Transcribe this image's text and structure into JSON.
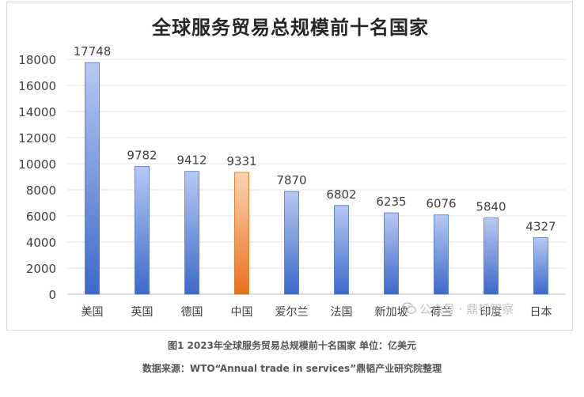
{
  "chart_data": {
    "type": "bar",
    "title": "全球服务贸易总规模前十名国家",
    "categories": [
      "美国",
      "英国",
      "德国",
      "中国",
      "爱尔兰",
      "法国",
      "新加坡",
      "荷兰",
      "印度",
      "日本"
    ],
    "values": [
      17748,
      9782,
      9412,
      9331,
      7870,
      6802,
      6235,
      6076,
      5840,
      4327
    ],
    "ylim": [
      0,
      18000
    ],
    "yticks": [
      0,
      2000,
      4000,
      6000,
      8000,
      10000,
      12000,
      14000,
      16000,
      18000
    ],
    "highlight_category": "中国",
    "colors": {
      "bar_top": "#b7c9f2",
      "bar_bottom": "#3d69c9",
      "highlight_top": "#fbd4b0",
      "highlight_bottom": "#e8711c"
    },
    "grid": true,
    "xlabel": "",
    "ylabel": ""
  },
  "watermark": {
    "text": "公众号 · 鼎韬智察",
    "icon": "wechat-icon"
  },
  "captions": {
    "figure": "图1 2023年全球服务贸易总规模前十名国家 单位：亿美元",
    "source": "数据来源：WTO“Annual trade in services”鼎韬产业研究院整理"
  }
}
